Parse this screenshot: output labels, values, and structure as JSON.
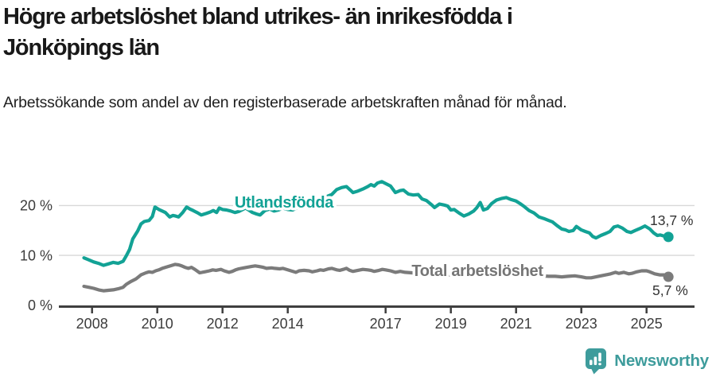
{
  "header": {
    "title": "Högre arbetslöshet bland utrikes- än inrikesfödda i Jönköpings län",
    "subtitle": "Arbetssökande som andel av den registerbaserade arbetskraften månad för månad."
  },
  "footer": {
    "brand": "Newsworthy"
  },
  "colors": {
    "accent_teal": "#12a295",
    "series_gray": "#7b7b7b",
    "series_gray_label": "#757575",
    "logo_teal": "#3e9c9c",
    "grid": "#d8d8d8",
    "axis": "#3f3f3f",
    "end_label_text": "#333333",
    "title_text": "#191919"
  },
  "chart_data": {
    "type": "line",
    "unit": "%",
    "x_axis": {
      "ticks": [
        2008,
        2010,
        2012,
        2014,
        2017,
        2019,
        2021,
        2023,
        2025
      ],
      "range": [
        2007.7,
        2026.5
      ]
    },
    "y_axis": {
      "ticks": [
        {
          "value": 20,
          "label": "20 %"
        },
        {
          "value": 10,
          "label": "10 %"
        },
        {
          "value": 0,
          "label": "0 %"
        }
      ],
      "range": [
        0,
        26
      ],
      "grid": true
    },
    "series": [
      {
        "name": "Utlandsfödda",
        "color": "#12a295",
        "label_color": "#12a295",
        "end_label": "13,7 %",
        "end_value": 13.7,
        "points": [
          [
            2007.75,
            9.5
          ],
          [
            2007.9,
            9.1
          ],
          [
            2008.05,
            8.7
          ],
          [
            2008.2,
            8.4
          ],
          [
            2008.35,
            8.0
          ],
          [
            2008.5,
            8.3
          ],
          [
            2008.65,
            8.6
          ],
          [
            2008.8,
            8.4
          ],
          [
            2008.95,
            8.8
          ],
          [
            2009.05,
            9.9
          ],
          [
            2009.15,
            11.2
          ],
          [
            2009.25,
            13.3
          ],
          [
            2009.4,
            14.9
          ],
          [
            2009.5,
            16.3
          ],
          [
            2009.6,
            16.8
          ],
          [
            2009.75,
            17.0
          ],
          [
            2009.85,
            17.8
          ],
          [
            2009.93,
            19.7
          ],
          [
            2010.05,
            19.2
          ],
          [
            2010.15,
            18.9
          ],
          [
            2010.25,
            18.6
          ],
          [
            2010.38,
            17.7
          ],
          [
            2010.48,
            18.0
          ],
          [
            2010.56,
            17.9
          ],
          [
            2010.65,
            17.7
          ],
          [
            2010.78,
            18.6
          ],
          [
            2010.9,
            19.7
          ],
          [
            2011.0,
            19.3
          ],
          [
            2011.1,
            19.0
          ],
          [
            2011.22,
            18.6
          ],
          [
            2011.35,
            18.1
          ],
          [
            2011.5,
            18.4
          ],
          [
            2011.62,
            18.7
          ],
          [
            2011.72,
            19.0
          ],
          [
            2011.82,
            18.6
          ],
          [
            2011.9,
            19.5
          ],
          [
            2012.0,
            19.2
          ],
          [
            2012.12,
            19.1
          ],
          [
            2012.25,
            18.9
          ],
          [
            2012.38,
            18.6
          ],
          [
            2012.5,
            18.8
          ],
          [
            2012.62,
            19.2
          ],
          [
            2012.7,
            19.5
          ],
          [
            2012.8,
            19.1
          ],
          [
            2012.92,
            18.6
          ],
          [
            2013.05,
            18.3
          ],
          [
            2013.15,
            18.1
          ],
          [
            2013.3,
            19.0
          ],
          [
            2013.45,
            19.3
          ],
          [
            2013.58,
            18.9
          ],
          [
            2013.72,
            19.1
          ],
          [
            2013.85,
            19.5
          ],
          [
            2014.0,
            19.2
          ],
          [
            2014.15,
            19.1
          ],
          [
            2014.3,
            19.6
          ],
          [
            2014.45,
            20.2
          ],
          [
            2014.6,
            20.5
          ],
          [
            2014.75,
            20.3
          ],
          [
            2014.9,
            20.8
          ],
          [
            2015.05,
            21.5
          ],
          [
            2015.2,
            21.8
          ],
          [
            2015.35,
            22.2
          ],
          [
            2015.5,
            23.2
          ],
          [
            2015.65,
            23.6
          ],
          [
            2015.8,
            23.8
          ],
          [
            2015.92,
            23.1
          ],
          [
            2016.0,
            22.6
          ],
          [
            2016.15,
            22.9
          ],
          [
            2016.3,
            23.3
          ],
          [
            2016.45,
            23.8
          ],
          [
            2016.55,
            24.2
          ],
          [
            2016.65,
            23.9
          ],
          [
            2016.75,
            24.5
          ],
          [
            2016.88,
            24.8
          ],
          [
            2017.0,
            24.4
          ],
          [
            2017.15,
            23.9
          ],
          [
            2017.3,
            22.6
          ],
          [
            2017.45,
            23.0
          ],
          [
            2017.55,
            23.1
          ],
          [
            2017.7,
            22.3
          ],
          [
            2017.85,
            22.1
          ],
          [
            2018.0,
            22.2
          ],
          [
            2018.12,
            21.3
          ],
          [
            2018.25,
            21.0
          ],
          [
            2018.4,
            20.2
          ],
          [
            2018.5,
            19.6
          ],
          [
            2018.65,
            20.3
          ],
          [
            2018.8,
            20.1
          ],
          [
            2018.9,
            19.9
          ],
          [
            2019.0,
            19.1
          ],
          [
            2019.1,
            19.2
          ],
          [
            2019.25,
            18.5
          ],
          [
            2019.4,
            17.9
          ],
          [
            2019.55,
            18.3
          ],
          [
            2019.7,
            18.9
          ],
          [
            2019.8,
            19.6
          ],
          [
            2019.9,
            20.6
          ],
          [
            2020.0,
            19.1
          ],
          [
            2020.12,
            19.4
          ],
          [
            2020.25,
            20.4
          ],
          [
            2020.4,
            21.1
          ],
          [
            2020.55,
            21.4
          ],
          [
            2020.7,
            21.6
          ],
          [
            2020.85,
            21.2
          ],
          [
            2021.0,
            20.9
          ],
          [
            2021.12,
            20.4
          ],
          [
            2021.25,
            19.8
          ],
          [
            2021.4,
            19.0
          ],
          [
            2021.55,
            18.5
          ],
          [
            2021.7,
            17.7
          ],
          [
            2021.85,
            17.4
          ],
          [
            2022.0,
            17.0
          ],
          [
            2022.12,
            16.7
          ],
          [
            2022.25,
            16.0
          ],
          [
            2022.4,
            15.3
          ],
          [
            2022.52,
            15.1
          ],
          [
            2022.62,
            14.8
          ],
          [
            2022.75,
            15.0
          ],
          [
            2022.85,
            15.8
          ],
          [
            2023.0,
            15.1
          ],
          [
            2023.12,
            14.8
          ],
          [
            2023.25,
            14.5
          ],
          [
            2023.35,
            13.8
          ],
          [
            2023.45,
            13.5
          ],
          [
            2023.6,
            14.0
          ],
          [
            2023.75,
            14.4
          ],
          [
            2023.88,
            14.8
          ],
          [
            2024.0,
            15.7
          ],
          [
            2024.12,
            15.9
          ],
          [
            2024.25,
            15.5
          ],
          [
            2024.4,
            14.8
          ],
          [
            2024.52,
            14.6
          ],
          [
            2024.65,
            15.0
          ],
          [
            2024.8,
            15.4
          ],
          [
            2024.95,
            15.9
          ],
          [
            2025.1,
            15.3
          ],
          [
            2025.22,
            14.5
          ],
          [
            2025.33,
            14.0
          ],
          [
            2025.42,
            14.1
          ],
          [
            2025.52,
            13.9
          ],
          [
            2025.67,
            13.7
          ]
        ]
      },
      {
        "name": "Total arbetslöshet",
        "color": "#7b7b7b",
        "label_color": "#757575",
        "end_label": "5,7 %",
        "end_value": 5.7,
        "points": [
          [
            2007.75,
            3.8
          ],
          [
            2007.9,
            3.6
          ],
          [
            2008.05,
            3.4
          ],
          [
            2008.2,
            3.1
          ],
          [
            2008.35,
            2.9
          ],
          [
            2008.5,
            3.0
          ],
          [
            2008.65,
            3.1
          ],
          [
            2008.8,
            3.3
          ],
          [
            2008.95,
            3.6
          ],
          [
            2009.05,
            4.2
          ],
          [
            2009.2,
            4.8
          ],
          [
            2009.35,
            5.3
          ],
          [
            2009.5,
            6.1
          ],
          [
            2009.65,
            6.5
          ],
          [
            2009.75,
            6.7
          ],
          [
            2009.85,
            6.6
          ],
          [
            2009.95,
            6.9
          ],
          [
            2010.05,
            7.1
          ],
          [
            2010.15,
            7.4
          ],
          [
            2010.3,
            7.7
          ],
          [
            2010.45,
            8.0
          ],
          [
            2010.55,
            8.2
          ],
          [
            2010.65,
            8.1
          ],
          [
            2010.75,
            7.9
          ],
          [
            2010.85,
            7.6
          ],
          [
            2010.95,
            7.4
          ],
          [
            2011.05,
            7.6
          ],
          [
            2011.15,
            7.2
          ],
          [
            2011.3,
            6.5
          ],
          [
            2011.45,
            6.7
          ],
          [
            2011.6,
            6.9
          ],
          [
            2011.7,
            7.1
          ],
          [
            2011.8,
            7.0
          ],
          [
            2011.95,
            7.2
          ],
          [
            2012.05,
            6.9
          ],
          [
            2012.2,
            6.6
          ],
          [
            2012.3,
            6.8
          ],
          [
            2012.4,
            7.1
          ],
          [
            2012.5,
            7.3
          ],
          [
            2012.65,
            7.5
          ],
          [
            2012.75,
            7.6
          ],
          [
            2012.9,
            7.8
          ],
          [
            2013.0,
            7.9
          ],
          [
            2013.1,
            7.8
          ],
          [
            2013.25,
            7.6
          ],
          [
            2013.35,
            7.4
          ],
          [
            2013.5,
            7.5
          ],
          [
            2013.6,
            7.4
          ],
          [
            2013.75,
            7.3
          ],
          [
            2013.85,
            7.4
          ],
          [
            2014.0,
            7.1
          ],
          [
            2014.1,
            6.9
          ],
          [
            2014.25,
            6.6
          ],
          [
            2014.35,
            6.9
          ],
          [
            2014.5,
            7.0
          ],
          [
            2014.65,
            6.9
          ],
          [
            2014.75,
            6.7
          ],
          [
            2014.9,
            6.9
          ],
          [
            2015.0,
            7.1
          ],
          [
            2015.1,
            7.0
          ],
          [
            2015.25,
            7.3
          ],
          [
            2015.35,
            7.4
          ],
          [
            2015.5,
            7.1
          ],
          [
            2015.6,
            7.0
          ],
          [
            2015.7,
            7.2
          ],
          [
            2015.8,
            7.4
          ],
          [
            2015.9,
            7.0
          ],
          [
            2016.0,
            6.8
          ],
          [
            2016.15,
            7.0
          ],
          [
            2016.3,
            7.2
          ],
          [
            2016.45,
            7.1
          ],
          [
            2016.55,
            7.0
          ],
          [
            2016.65,
            6.8
          ],
          [
            2016.8,
            7.0
          ],
          [
            2016.9,
            7.2
          ],
          [
            2017.0,
            7.1
          ],
          [
            2017.15,
            6.9
          ],
          [
            2017.3,
            6.6
          ],
          [
            2017.45,
            6.8
          ],
          [
            2017.6,
            6.6
          ],
          [
            2017.8,
            6.5
          ],
          [
            2018.0,
            6.4
          ],
          [
            2018.25,
            6.3
          ],
          [
            2018.5,
            6.2
          ],
          [
            2018.75,
            6.1
          ],
          [
            2019.0,
            6.1
          ],
          [
            2019.25,
            6.0
          ],
          [
            2019.5,
            6.0
          ],
          [
            2019.75,
            6.1
          ],
          [
            2020.0,
            6.4
          ],
          [
            2020.2,
            7.0
          ],
          [
            2020.4,
            7.3
          ],
          [
            2020.6,
            7.2
          ],
          [
            2020.8,
            7.0
          ],
          [
            2021.0,
            6.8
          ],
          [
            2021.2,
            6.5
          ],
          [
            2021.4,
            6.2
          ],
          [
            2021.6,
            6.0
          ],
          [
            2021.8,
            5.9
          ],
          [
            2022.0,
            5.8
          ],
          [
            2022.2,
            5.8
          ],
          [
            2022.4,
            5.7
          ],
          [
            2022.6,
            5.8
          ],
          [
            2022.8,
            5.9
          ],
          [
            2023.0,
            5.7
          ],
          [
            2023.15,
            5.5
          ],
          [
            2023.3,
            5.5
          ],
          [
            2023.45,
            5.7
          ],
          [
            2023.6,
            5.9
          ],
          [
            2023.75,
            6.1
          ],
          [
            2023.9,
            6.3
          ],
          [
            2024.05,
            6.6
          ],
          [
            2024.15,
            6.4
          ],
          [
            2024.3,
            6.6
          ],
          [
            2024.45,
            6.3
          ],
          [
            2024.55,
            6.4
          ],
          [
            2024.7,
            6.7
          ],
          [
            2024.85,
            6.9
          ],
          [
            2025.0,
            6.9
          ],
          [
            2025.1,
            6.7
          ],
          [
            2025.25,
            6.3
          ],
          [
            2025.4,
            6.1
          ],
          [
            2025.55,
            6.1
          ],
          [
            2025.67,
            5.7
          ]
        ]
      }
    ]
  }
}
